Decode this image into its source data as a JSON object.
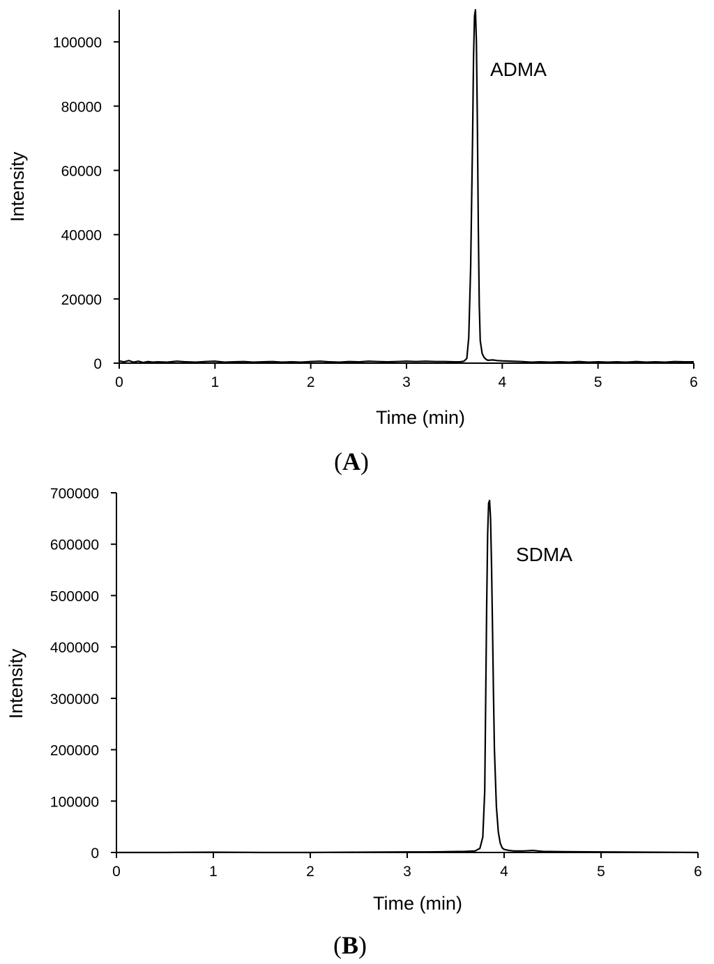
{
  "chart_data": [
    {
      "type": "line",
      "panel_label": "A",
      "title": "",
      "xlabel": "Time (min)",
      "ylabel": "Intensity",
      "xlim": [
        0,
        6
      ],
      "ylim": [
        0,
        110000
      ],
      "x_ticks": [
        0,
        1,
        2,
        3,
        4,
        5,
        6
      ],
      "y_ticks": [
        0,
        20000,
        40000,
        60000,
        80000,
        100000
      ],
      "x_tick_labels": [
        "0",
        "1",
        "2",
        "3",
        "4",
        "5",
        "6"
      ],
      "y_tick_labels": [
        "0",
        "20000",
        "40000",
        "60000",
        "80000",
        "100000"
      ],
      "annotations": [
        {
          "text": "ADMA",
          "x": 3.87,
          "y": 95000
        }
      ],
      "grid": false,
      "series": [
        {
          "x": [
            0,
            0.05,
            0.1,
            0.15,
            0.2,
            0.25,
            0.3,
            0.35,
            0.4,
            0.5,
            0.6,
            0.7,
            0.8,
            0.9,
            1.0,
            1.1,
            1.2,
            1.3,
            1.4,
            1.5,
            1.6,
            1.7,
            1.8,
            1.9,
            2.0,
            2.1,
            2.2,
            2.3,
            2.4,
            2.5,
            2.6,
            2.7,
            2.8,
            2.9,
            3.0,
            3.1,
            3.2,
            3.3,
            3.4,
            3.5,
            3.55,
            3.6,
            3.63,
            3.65,
            3.67,
            3.69,
            3.7,
            3.71,
            3.72,
            3.73,
            3.74,
            3.75,
            3.76,
            3.77,
            3.79,
            3.81,
            3.83,
            3.85,
            3.9,
            3.95,
            4.0,
            4.1,
            4.2,
            4.3,
            4.4,
            4.5,
            4.6,
            4.7,
            4.8,
            4.9,
            5.0,
            5.1,
            5.2,
            5.3,
            5.4,
            5.5,
            5.6,
            5.7,
            5.8,
            5.9,
            6.0
          ],
          "values": [
            700,
            400,
            800,
            300,
            600,
            200,
            500,
            300,
            400,
            300,
            600,
            400,
            300,
            500,
            600,
            300,
            400,
            500,
            300,
            400,
            500,
            300,
            400,
            300,
            500,
            600,
            400,
            300,
            500,
            400,
            600,
            500,
            400,
            500,
            600,
            500,
            600,
            500,
            500,
            400,
            400,
            600,
            1500,
            8000,
            30000,
            70000,
            95000,
            108000,
            110000,
            100000,
            75000,
            42000,
            18000,
            7000,
            3000,
            1800,
            1200,
            900,
            1000,
            800,
            700,
            600,
            500,
            300,
            400,
            300,
            400,
            300,
            500,
            300,
            400,
            300,
            400,
            300,
            500,
            300,
            400,
            300,
            500,
            400,
            400
          ]
        }
      ]
    },
    {
      "type": "line",
      "panel_label": "B",
      "title": "",
      "xlabel": "Time (min)",
      "ylabel": "Intensity",
      "xlim": [
        0,
        6
      ],
      "ylim": [
        0,
        700000
      ],
      "x_ticks": [
        0,
        1,
        2,
        3,
        4,
        5,
        6
      ],
      "y_ticks": [
        0,
        100000,
        200000,
        300000,
        400000,
        500000,
        600000,
        700000
      ],
      "x_tick_labels": [
        "0",
        "1",
        "2",
        "3",
        "4",
        "5",
        "6"
      ],
      "y_tick_labels": [
        "0",
        "100000",
        "200000",
        "300000",
        "400000",
        "500000",
        "600000",
        "700000"
      ],
      "annotations": [
        {
          "text": "SDMA",
          "x": 4.1,
          "y": 570000
        }
      ],
      "grid": false,
      "series": [
        {
          "x": [
            0,
            0.5,
            1.0,
            1.5,
            2.0,
            2.5,
            3.0,
            3.2,
            3.4,
            3.6,
            3.7,
            3.75,
            3.78,
            3.8,
            3.81,
            3.82,
            3.83,
            3.84,
            3.85,
            3.86,
            3.87,
            3.88,
            3.89,
            3.9,
            3.92,
            3.94,
            3.96,
            3.98,
            4.0,
            4.05,
            4.1,
            4.2,
            4.25,
            4.3,
            4.35,
            4.4,
            4.6,
            5.0,
            5.5,
            6.0
          ],
          "values": [
            0,
            0,
            500,
            0,
            0,
            500,
            1000,
            1000,
            1500,
            2000,
            3000,
            8000,
            30000,
            120000,
            300000,
            480000,
            620000,
            680000,
            685000,
            650000,
            560000,
            440000,
            310000,
            200000,
            90000,
            40000,
            18000,
            9000,
            6000,
            4000,
            3000,
            3000,
            3500,
            4000,
            3000,
            2000,
            1500,
            1000,
            500,
            0
          ]
        }
      ]
    }
  ]
}
